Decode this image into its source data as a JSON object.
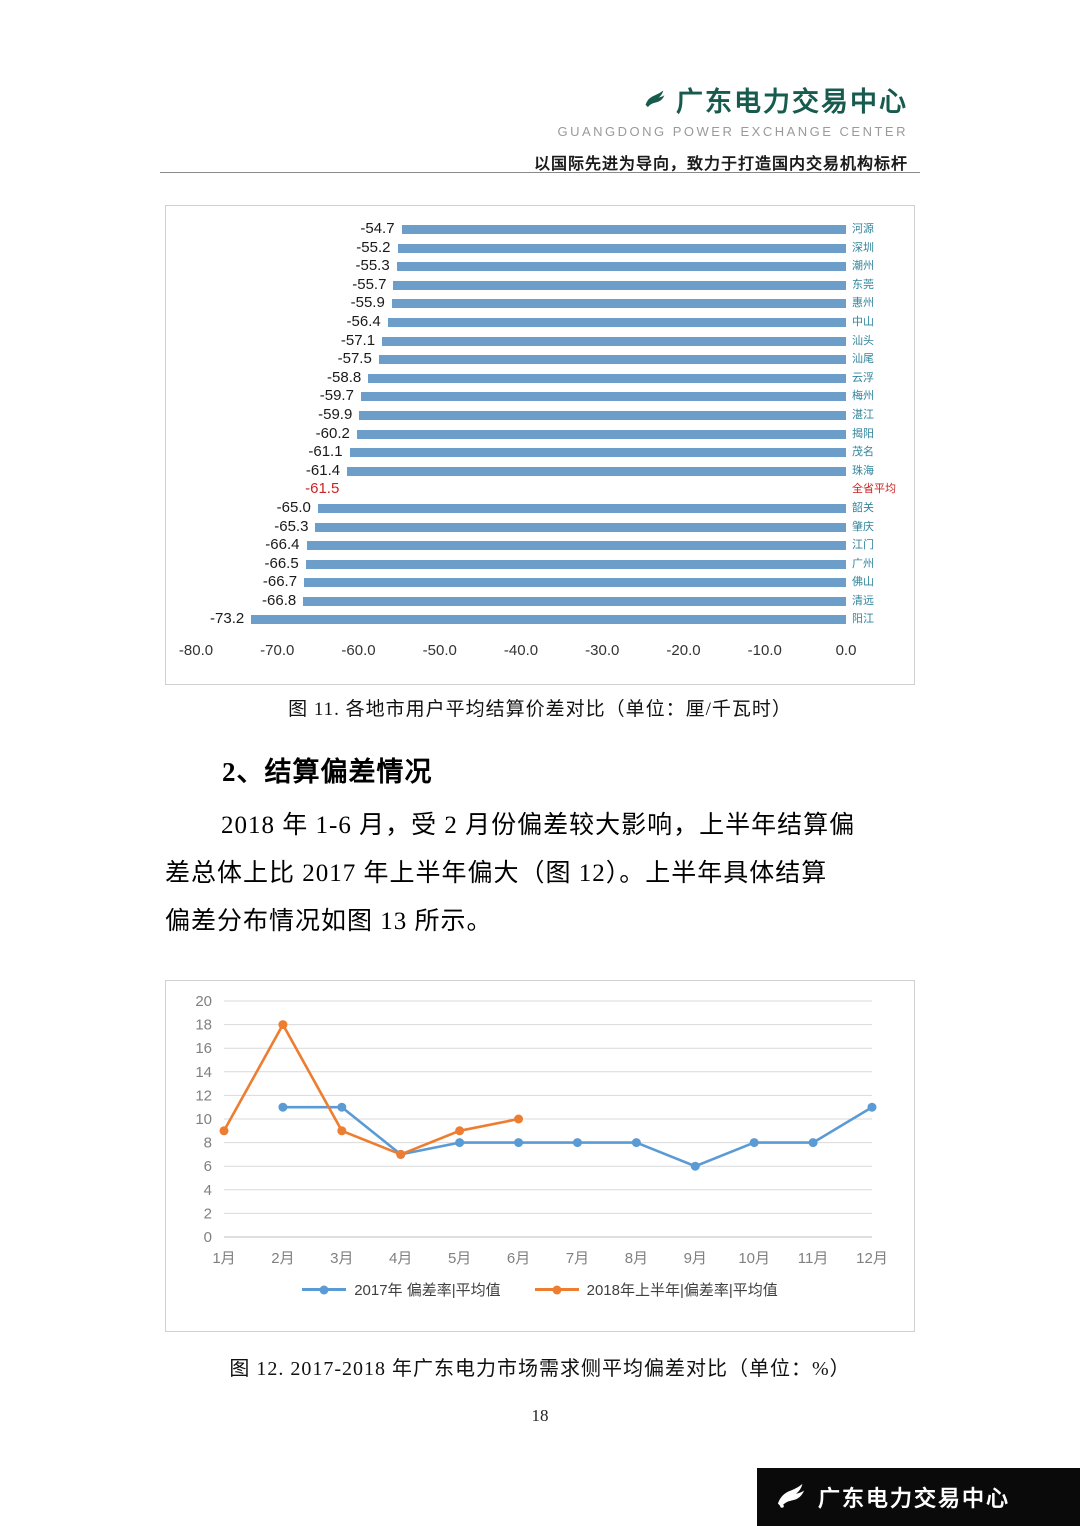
{
  "header": {
    "org_cn": "广东电力交易中心",
    "org_en": "GUANGDONG  POWER  EXCHANGE  CENTER",
    "tagline": "以国际先进为导向，致力于打造国内交易机构标杆"
  },
  "figure11_caption": "图  11. 各地市用户平均结算价差对比（单位：厘/千瓦时）",
  "section2": {
    "heading": "2、结算偏差情况",
    "para_lines": [
      "2018 年 1-6 月，受 2 月份偏差较大影响，上半年结算偏",
      "差总体上比 2017 年上半年偏大（图  12）。上半年具体结算",
      "偏差分布情况如图  13 所示。"
    ]
  },
  "figure12_caption": "图  12. 2017-2018 年广东电力市场需求侧平均偏差对比（单位：%）",
  "page_number": "18",
  "footer_brand": "广东电力交易中心",
  "chart_data": [
    {
      "type": "bar",
      "orientation": "horizontal",
      "title": "各地市用户平均结算价差对比",
      "unit": "厘/千瓦时",
      "categories": [
        "河源",
        "深圳",
        "潮州",
        "东莞",
        "惠州",
        "中山",
        "汕头",
        "汕尾",
        "云浮",
        "梅州",
        "湛江",
        "揭阳",
        "茂名",
        "珠海",
        "全省平均",
        "韶关",
        "肇庆",
        "江门",
        "广州",
        "佛山",
        "清远",
        "阳江"
      ],
      "values": [
        -54.7,
        -55.2,
        -55.3,
        -55.7,
        -55.9,
        -56.4,
        -57.1,
        -57.5,
        -58.8,
        -59.7,
        -59.9,
        -60.2,
        -61.1,
        -61.4,
        -61.5,
        -65.0,
        -65.3,
        -66.4,
        -66.5,
        -66.7,
        -66.8,
        -73.2
      ],
      "highlight_category": "全省平均",
      "bar_color": "#6D9EC9",
      "highlight_color": "#CC2222",
      "category_label_color": "#31859B",
      "xlim": [
        -80,
        0
      ],
      "x_ticks": [
        "-80.0",
        "-70.0",
        "-60.0",
        "-50.0",
        "-40.0",
        "-30.0",
        "-20.0",
        "-10.0",
        "0.0"
      ],
      "grid": false
    },
    {
      "type": "line",
      "title": "2017-2018 年广东电力市场需求侧平均偏差对比",
      "unit": "%",
      "x": [
        "1月",
        "2月",
        "3月",
        "4月",
        "5月",
        "6月",
        "7月",
        "8月",
        "9月",
        "10月",
        "11月",
        "12月"
      ],
      "series": [
        {
          "name": "2017年 偏差率|平均值",
          "color": "#5B9BD5",
          "values": [
            null,
            11,
            11,
            7,
            8,
            8,
            8,
            8,
            6,
            8,
            8,
            11
          ]
        },
        {
          "name": "2018年上半年|偏差率|平均值",
          "color": "#ED7D31",
          "values": [
            9,
            18,
            9,
            7,
            9,
            10,
            null,
            null,
            null,
            null,
            null,
            null
          ]
        }
      ],
      "ylim": [
        0,
        20
      ],
      "y_ticks": [
        0,
        2,
        4,
        6,
        8,
        10,
        12,
        14,
        16,
        18,
        20
      ],
      "grid": true,
      "legend_position": "bottom"
    }
  ]
}
